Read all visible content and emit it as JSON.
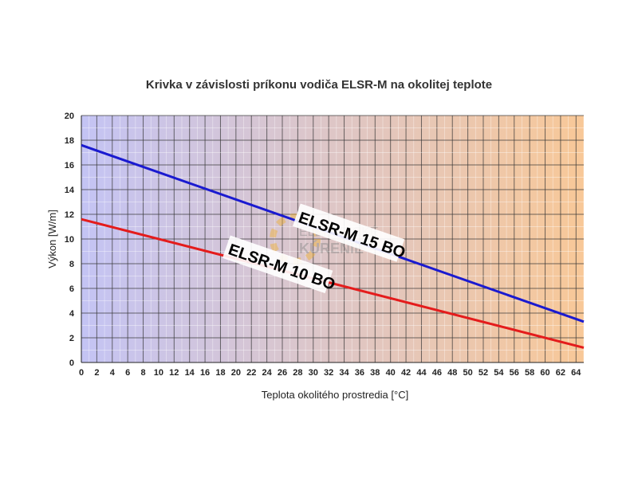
{
  "chart_data": {
    "type": "line",
    "title": "Krivka v závislosti príkonu vodiča ELSR-M na okolitej teplote",
    "xlabel": "Teplota okolitého prostredia  [°C]",
    "ylabel": "Výkon  [W/m]",
    "xlim": [
      0,
      65
    ],
    "ylim": [
      0,
      20
    ],
    "xticks": [
      0,
      2,
      4,
      6,
      8,
      10,
      12,
      14,
      16,
      18,
      20,
      22,
      24,
      26,
      28,
      30,
      32,
      34,
      36,
      38,
      40,
      42,
      44,
      46,
      48,
      50,
      52,
      54,
      56,
      58,
      60,
      62,
      64
    ],
    "yticks": [
      0,
      2,
      4,
      6,
      8,
      10,
      12,
      14,
      16,
      18,
      20
    ],
    "grid": true,
    "background_gradient": [
      "#c4c4f4",
      "#f8c898"
    ],
    "series": [
      {
        "name": "ELSR-M 15 BO",
        "color": "#1a1ad0",
        "x": [
          0,
          65
        ],
        "y": [
          17.6,
          3.3
        ]
      },
      {
        "name": "ELSR-M 10 BO",
        "color": "#e41c1c",
        "x": [
          0,
          65
        ],
        "y": [
          11.6,
          1.2
        ]
      }
    ],
    "annotations": [
      "ELSR-M 15 BO",
      "ELSR-M 10 BO"
    ],
    "watermark": [
      "ELEKTRICKÉ",
      "KÚRENIE"
    ]
  }
}
